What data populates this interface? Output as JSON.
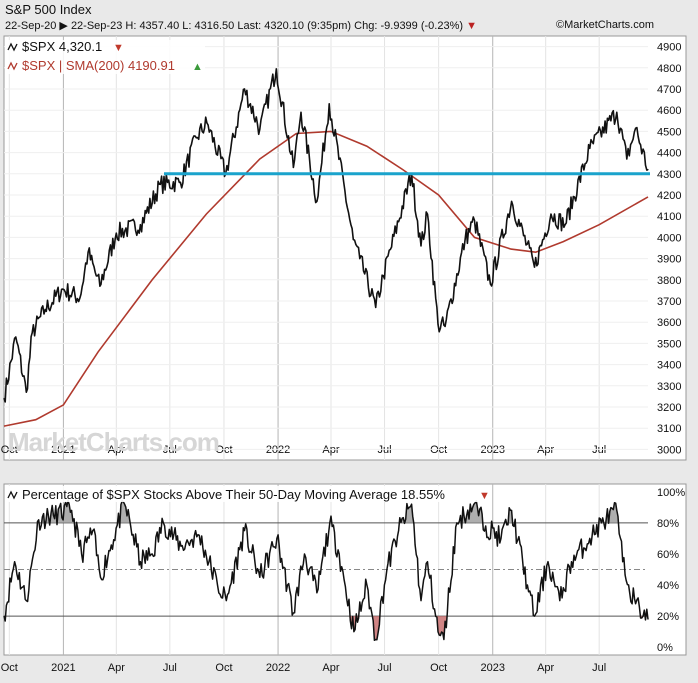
{
  "header": {
    "title": "S&P 500 Index",
    "date_range": "22-Sep-20 ▶ 22-Sep-23",
    "high_label": "H:",
    "high": "4357.40",
    "low_label": "L:",
    "low": "4316.50",
    "last_label": "Last:",
    "last": "4320.10 (9:35pm)",
    "chg_label": "Chg:",
    "chg": "-9.9399 (-0.23%)",
    "brand": "©MarketCharts.com"
  },
  "watermark": "MarketCharts.com",
  "colors": {
    "price": "#111111",
    "sma": "#b03a2e",
    "support_line": "#1aa3cc",
    "up": "#3a9a3a",
    "down": "#c0392b",
    "panel_bg": "#ffffff",
    "page_bg": "#e9e9e9"
  },
  "chart_data": [
    {
      "type": "line",
      "legend": [
        {
          "text": "$SPX 4,320.1",
          "marker": "down"
        },
        {
          "text": "$SPX | SMA(200) 4190.91",
          "marker": "up"
        }
      ],
      "x_ticks": [
        "Oct",
        "2021",
        "Apr",
        "Jul",
        "Oct",
        "2022",
        "Apr",
        "Jul",
        "Oct",
        "2023",
        "Apr",
        "Jul"
      ],
      "y_ticks": [
        3000,
        3100,
        3200,
        3300,
        3400,
        3500,
        3600,
        3700,
        3800,
        3900,
        4000,
        4100,
        4200,
        4300,
        4400,
        4500,
        4600,
        4700,
        4800,
        4900
      ],
      "ylim": [
        2950,
        4950
      ],
      "horizontal_line": 4300,
      "series": [
        {
          "name": "$SPX",
          "x": [
            "2020-09-22",
            "2020-10-12",
            "2020-10-30",
            "2020-11-09",
            "2020-12-01",
            "2020-12-31",
            "2021-01-29",
            "2021-02-12",
            "2021-03-04",
            "2021-04-01",
            "2021-05-12",
            "2021-06-15",
            "2021-07-19",
            "2021-08-15",
            "2021-09-02",
            "2021-10-04",
            "2021-11-05",
            "2021-12-01",
            "2021-12-29",
            "2022-01-27",
            "2022-02-09",
            "2022-03-08",
            "2022-03-29",
            "2022-05-09",
            "2022-05-20",
            "2022-06-16",
            "2022-06-29",
            "2022-08-16",
            "2022-09-01",
            "2022-09-12",
            "2022-09-30",
            "2022-10-12",
            "2022-11-15",
            "2022-12-01",
            "2022-12-28",
            "2023-02-02",
            "2023-03-13",
            "2023-04-10",
            "2023-05-04",
            "2023-06-15",
            "2023-07-31",
            "2023-08-17",
            "2023-09-01",
            "2023-09-22"
          ],
          "values": [
            3240,
            3530,
            3270,
            3550,
            3660,
            3756,
            3714,
            3930,
            3770,
            4020,
            4060,
            4250,
            4260,
            4470,
            4540,
            4300,
            4700,
            4510,
            4795,
            4330,
            4590,
            4170,
            4630,
            3990,
            3900,
            3670,
            3820,
            4300,
            3960,
            4110,
            3590,
            3580,
            3990,
            4080,
            3780,
            4170,
            3860,
            4110,
            4060,
            4420,
            4590,
            4370,
            4515,
            4320
          ]
        },
        {
          "name": "SMA(200)",
          "x": [
            "2020-09-22",
            "2020-11-15",
            "2021-01-01",
            "2021-03-01",
            "2021-06-01",
            "2021-09-01",
            "2021-12-01",
            "2022-02-01",
            "2022-04-01",
            "2022-06-01",
            "2022-08-01",
            "2022-10-01",
            "2022-12-01",
            "2023-02-01",
            "2023-03-15",
            "2023-05-01",
            "2023-07-01",
            "2023-09-22"
          ],
          "values": [
            3110,
            3140,
            3210,
            3460,
            3800,
            4110,
            4370,
            4490,
            4500,
            4430,
            4320,
            4200,
            4000,
            3945,
            3930,
            3980,
            4060,
            4191
          ]
        }
      ]
    },
    {
      "type": "line",
      "legend": [
        {
          "text": "Percentage of $SPX Stocks Above Their 50-Day Moving Average 18.55%",
          "marker": "down"
        }
      ],
      "x_ticks": [
        "Oct",
        "2021",
        "Apr",
        "Jul",
        "Oct",
        "2022",
        "Apr",
        "Jul",
        "Oct",
        "2023",
        "Apr",
        "Jul"
      ],
      "y_ticks": [
        "0%",
        "20%",
        "40%",
        "60%",
        "80%",
        "100%"
      ],
      "ylim": [
        -5,
        105
      ],
      "reference_lines": [
        80,
        50,
        20
      ],
      "series": [
        {
          "name": "% above 50-day MA",
          "x": [
            "2020-09-22",
            "2020-10-10",
            "2020-10-30",
            "2020-11-20",
            "2020-12-15",
            "2021-01-15",
            "2021-02-01",
            "2021-02-20",
            "2021-03-05",
            "2021-04-15",
            "2021-05-12",
            "2021-06-01",
            "2021-06-20",
            "2021-07-20",
            "2021-08-20",
            "2021-09-20",
            "2021-10-05",
            "2021-11-05",
            "2021-12-01",
            "2021-12-30",
            "2022-01-27",
            "2022-02-15",
            "2022-03-08",
            "2022-03-30",
            "2022-04-15",
            "2022-05-10",
            "2022-06-01",
            "2022-06-16",
            "2022-07-05",
            "2022-07-25",
            "2022-08-16",
            "2022-09-01",
            "2022-09-12",
            "2022-09-30",
            "2022-10-10",
            "2022-11-01",
            "2022-11-30",
            "2022-12-20",
            "2023-01-15",
            "2023-02-02",
            "2023-03-01",
            "2023-03-13",
            "2023-04-05",
            "2023-04-25",
            "2023-05-15",
            "2023-06-15",
            "2023-07-05",
            "2023-07-31",
            "2023-08-10",
            "2023-08-20",
            "2023-09-01",
            "2023-09-22"
          ],
          "values": [
            20,
            55,
            30,
            82,
            85,
            88,
            60,
            75,
            45,
            92,
            55,
            60,
            80,
            65,
            72,
            40,
            30,
            75,
            45,
            70,
            22,
            60,
            35,
            80,
            60,
            10,
            40,
            5,
            50,
            75,
            92,
            30,
            55,
            10,
            5,
            80,
            92,
            78,
            70,
            88,
            40,
            20,
            55,
            30,
            55,
            70,
            80,
            88,
            55,
            40,
            28,
            18
          ]
        }
      ]
    }
  ]
}
